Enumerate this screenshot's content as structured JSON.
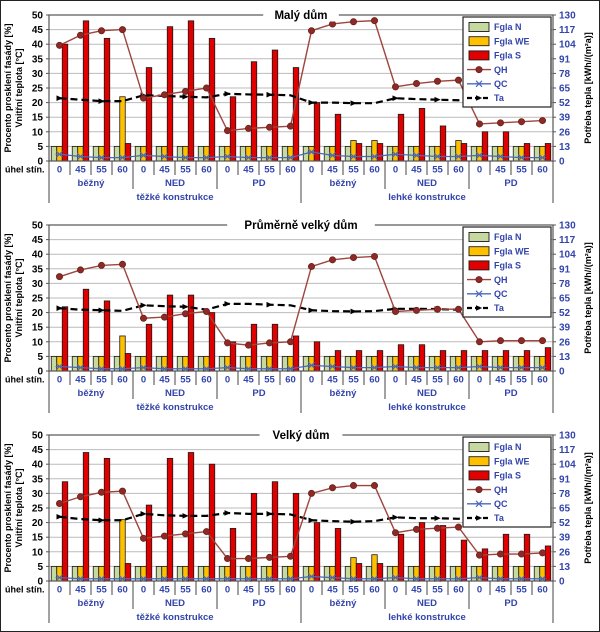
{
  "page": {
    "background": "#ffffff",
    "frame_border": "#222222"
  },
  "colors": {
    "fgla_n": "#c6d9a0",
    "fgla_we": "#ffc000",
    "fgla_s": "#e00000",
    "bar_border": "#1a1a1a",
    "qh_line": "#9e453e",
    "qh_marker": "#8e2a25",
    "qc_line": "#4a69bd",
    "ta_line": "#000000",
    "grid": "#bbbbbb",
    "plot_border": "#555555",
    "tick_label_left": "#000000",
    "tick_label_right": "#3344aa",
    "tick_label_bottom": "#3344aa",
    "axis_title": "#000000",
    "legend_border": "#222222"
  },
  "legend": {
    "items": [
      {
        "label": "Fgla N",
        "type": "swatch",
        "color_key": "fgla_n"
      },
      {
        "label": "Fgla WE",
        "type": "swatch",
        "color_key": "fgla_we"
      },
      {
        "label": "Fgla S",
        "type": "swatch",
        "color_key": "fgla_s"
      },
      {
        "label": "QH",
        "type": "line-circle",
        "color_key": "qh_line"
      },
      {
        "label": "QC",
        "type": "line-asterisk",
        "color_key": "qc_line"
      },
      {
        "label": "Ta",
        "type": "line-dashed-triangle",
        "color_key": "ta_line"
      }
    ]
  },
  "chart_data": [
    {
      "type": "bar",
      "title": "Malý dům",
      "ylabel_left_line1": "Procento prosklení fasády [%]",
      "ylabel_left_line2": "Vnitřní teplota [°C]",
      "ylabel_right": "Potřeba tepla [kWh//(m²a)]",
      "xlabel": "úhel stín.",
      "left_axis": {
        "min": 0,
        "max": 50,
        "step": 5
      },
      "right_axis": {
        "min": 0,
        "max": 130,
        "step": 13
      },
      "angles": [
        "0",
        "45",
        "55",
        "60"
      ],
      "groups": [
        "běžný",
        "NED",
        "PD",
        "běžný",
        "NED",
        "PD"
      ],
      "supergroups": [
        "těžké konstrukce",
        "lehké konstrukce"
      ],
      "series": [
        {
          "name": "Fgla N",
          "type": "bar",
          "axis": "left",
          "values": [
            5,
            5,
            5,
            5,
            5,
            5,
            5,
            5,
            5,
            5,
            5,
            5,
            5,
            5,
            5,
            5,
            5,
            5,
            5,
            5,
            5,
            5,
            5,
            5
          ]
        },
        {
          "name": "Fgla WE",
          "type": "bar",
          "axis": "left",
          "values": [
            5,
            5,
            5,
            22,
            5,
            5,
            5,
            5,
            5,
            5,
            5,
            5,
            5,
            5,
            7,
            7,
            5,
            5,
            5,
            7,
            5,
            5,
            5,
            5
          ]
        },
        {
          "name": "Fgla S",
          "type": "bar",
          "axis": "left",
          "values": [
            40,
            48,
            42,
            6,
            32,
            46,
            48,
            42,
            22,
            34,
            38,
            32,
            20,
            16,
            6,
            6,
            16,
            18,
            12,
            6,
            10,
            10,
            6,
            6
          ]
        },
        {
          "name": "QH",
          "type": "line",
          "axis": "right",
          "values": [
            103,
            112,
            116,
            117,
            56,
            59,
            62,
            65,
            27,
            29,
            30,
            31,
            116,
            122,
            124,
            125,
            66,
            69,
            71,
            72,
            33,
            34,
            35,
            36
          ]
        },
        {
          "name": "QC",
          "type": "line",
          "axis": "right",
          "values": [
            6,
            4,
            3,
            3,
            5,
            4,
            3,
            3,
            4,
            3,
            3,
            3,
            8,
            5,
            4,
            4,
            6,
            5,
            4,
            4,
            5,
            4,
            3,
            3
          ]
        },
        {
          "name": "Ta",
          "type": "line",
          "axis": "left",
          "values": [
            21.5,
            21,
            20.5,
            20.5,
            22.5,
            22.3,
            22,
            21.8,
            23,
            22.8,
            22.7,
            22.5,
            20,
            20,
            19.8,
            19.8,
            21.5,
            21.2,
            21,
            20.8,
            22,
            21.8,
            21.7,
            21.5
          ]
        }
      ]
    },
    {
      "type": "bar",
      "title": "Průměrně velký dům",
      "ylabel_left_line1": "Procento prosklení fasády [%]",
      "ylabel_left_line2": "Vnitřní teplota [°C]",
      "ylabel_right": "Potřeba tepla [kWh//(m²a)]",
      "xlabel": "úhel stín.",
      "left_axis": {
        "min": 0,
        "max": 50,
        "step": 5
      },
      "right_axis": {
        "min": 0,
        "max": 130,
        "step": 13
      },
      "angles": [
        "0",
        "45",
        "55",
        "60"
      ],
      "groups": [
        "běžný",
        "NED",
        "PD",
        "běžný",
        "NED",
        "PD"
      ],
      "supergroups": [
        "těžké konstrukce",
        "lehké konstrukce"
      ],
      "series": [
        {
          "name": "Fgla N",
          "type": "bar",
          "axis": "left",
          "values": [
            5,
            5,
            5,
            5,
            5,
            5,
            5,
            5,
            5,
            5,
            5,
            5,
            5,
            5,
            5,
            5,
            5,
            5,
            5,
            5,
            5,
            5,
            5,
            5
          ]
        },
        {
          "name": "Fgla WE",
          "type": "bar",
          "axis": "left",
          "values": [
            5,
            5,
            5,
            12,
            5,
            5,
            5,
            5,
            5,
            5,
            5,
            5,
            5,
            5,
            5,
            5,
            5,
            5,
            5,
            5,
            5,
            5,
            5,
            5
          ]
        },
        {
          "name": "Fgla S",
          "type": "bar",
          "axis": "left",
          "values": [
            22,
            28,
            24,
            6,
            16,
            26,
            26,
            20,
            10,
            16,
            16,
            12,
            10,
            7,
            7,
            7,
            9,
            9,
            7,
            7,
            7,
            7,
            7,
            8
          ]
        },
        {
          "name": "QH",
          "type": "line",
          "axis": "right",
          "values": [
            84,
            90,
            94,
            95,
            47,
            48,
            51,
            53,
            25,
            23,
            25,
            26,
            93,
            99,
            101,
            102,
            53,
            54,
            55,
            55,
            26,
            27,
            27,
            27
          ]
        },
        {
          "name": "QC",
          "type": "line",
          "axis": "right",
          "values": [
            4,
            3,
            2,
            2,
            3,
            2,
            2,
            2,
            3,
            2,
            2,
            2,
            5,
            4,
            3,
            3,
            4,
            3,
            3,
            3,
            4,
            3,
            3,
            3
          ]
        },
        {
          "name": "Ta",
          "type": "line",
          "axis": "left",
          "values": [
            21.5,
            21,
            20.8,
            20.6,
            22.5,
            22.2,
            22,
            21,
            23,
            23,
            22.7,
            22.5,
            20.8,
            20.5,
            20.4,
            20.5,
            21.3,
            21.3,
            21.2,
            21,
            22.2,
            22,
            21.8,
            21.8
          ]
        }
      ]
    },
    {
      "type": "bar",
      "title": "Velký dům",
      "ylabel_left_line1": "Procento prosklení fasády [%]",
      "ylabel_left_line2": "Vnitřní teplota [°C]",
      "ylabel_right": "Potřeba tepla [kWh//(m²a)]",
      "xlabel": "úhel stín.",
      "left_axis": {
        "min": 0,
        "max": 50,
        "step": 5
      },
      "right_axis": {
        "min": 0,
        "max": 130,
        "step": 13
      },
      "angles": [
        "0",
        "45",
        "55",
        "60"
      ],
      "groups": [
        "běžný",
        "NED",
        "PD",
        "běžný",
        "NED",
        "PD"
      ],
      "supergroups": [
        "těžké konstrukce",
        "lehké konstrukce"
      ],
      "series": [
        {
          "name": "Fgla N",
          "type": "bar",
          "axis": "left",
          "values": [
            5,
            5,
            5,
            5,
            5,
            5,
            5,
            5,
            5,
            5,
            5,
            5,
            5,
            5,
            5,
            5,
            5,
            5,
            5,
            5,
            5,
            5,
            5,
            5
          ]
        },
        {
          "name": "Fgla WE",
          "type": "bar",
          "axis": "left",
          "values": [
            5,
            5,
            5,
            21,
            5,
            5,
            5,
            5,
            5,
            5,
            5,
            5,
            5,
            5,
            8,
            9,
            5,
            5,
            5,
            5,
            5,
            5,
            5,
            5
          ]
        },
        {
          "name": "Fgla S",
          "type": "bar",
          "axis": "left",
          "values": [
            34,
            44,
            42,
            6,
            26,
            42,
            44,
            40,
            18,
            30,
            34,
            30,
            20,
            18,
            6,
            6,
            16,
            20,
            19,
            14,
            11,
            16,
            16,
            12
          ]
        },
        {
          "name": "QH",
          "type": "line",
          "axis": "right",
          "values": [
            69,
            75,
            79,
            80,
            38,
            40,
            42,
            44,
            20,
            20,
            21,
            22,
            78,
            83,
            85,
            85,
            43,
            46,
            47,
            48,
            23,
            24,
            24,
            25
          ]
        },
        {
          "name": "QC",
          "type": "line",
          "axis": "right",
          "values": [
            3,
            2,
            2,
            2,
            2,
            2,
            2,
            2,
            2,
            2,
            2,
            2,
            4,
            3,
            2,
            2,
            3,
            2,
            2,
            2,
            3,
            2,
            2,
            2
          ]
        },
        {
          "name": "Ta",
          "type": "line",
          "axis": "left",
          "values": [
            22,
            21.2,
            20.8,
            20.8,
            23,
            22.5,
            22.3,
            22.3,
            23.3,
            23,
            23,
            22.8,
            20.8,
            20.5,
            20.3,
            20.5,
            21.8,
            21.5,
            21.5,
            21.3,
            22.5,
            22.3,
            22.2,
            22.2
          ]
        }
      ]
    }
  ]
}
